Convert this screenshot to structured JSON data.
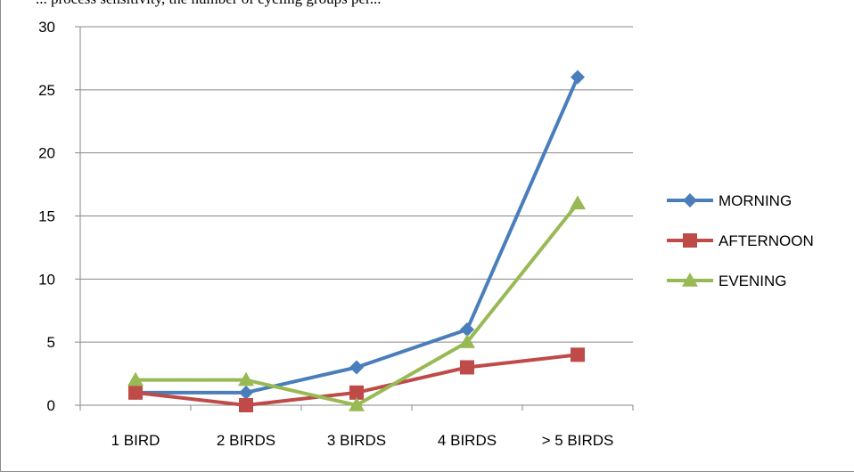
{
  "caption": "... process sensitivity, the number of cycling groups per...",
  "chart_data": {
    "type": "line",
    "categories": [
      "1 BIRD",
      "2 BIRDS",
      "3 BIRDS",
      "4 BIRDS",
      "> 5 BIRDS"
    ],
    "series": [
      {
        "name": "MORNING",
        "values": [
          1,
          1,
          3,
          6,
          26
        ],
        "color": "#4a7ebb",
        "marker": "diamond"
      },
      {
        "name": "AFTERNOON",
        "values": [
          1,
          0,
          1,
          3,
          4
        ],
        "color": "#be4b48",
        "marker": "square"
      },
      {
        "name": "EVENING",
        "values": [
          2,
          2,
          0,
          5,
          16
        ],
        "color": "#98b954",
        "marker": "triangle"
      }
    ],
    "yticks": [
      "0",
      "5",
      "10",
      "15",
      "20",
      "25",
      "30"
    ],
    "ylim": [
      0,
      30
    ],
    "grid": true,
    "legend": "right",
    "title": "",
    "xlabel": "",
    "ylabel": ""
  }
}
